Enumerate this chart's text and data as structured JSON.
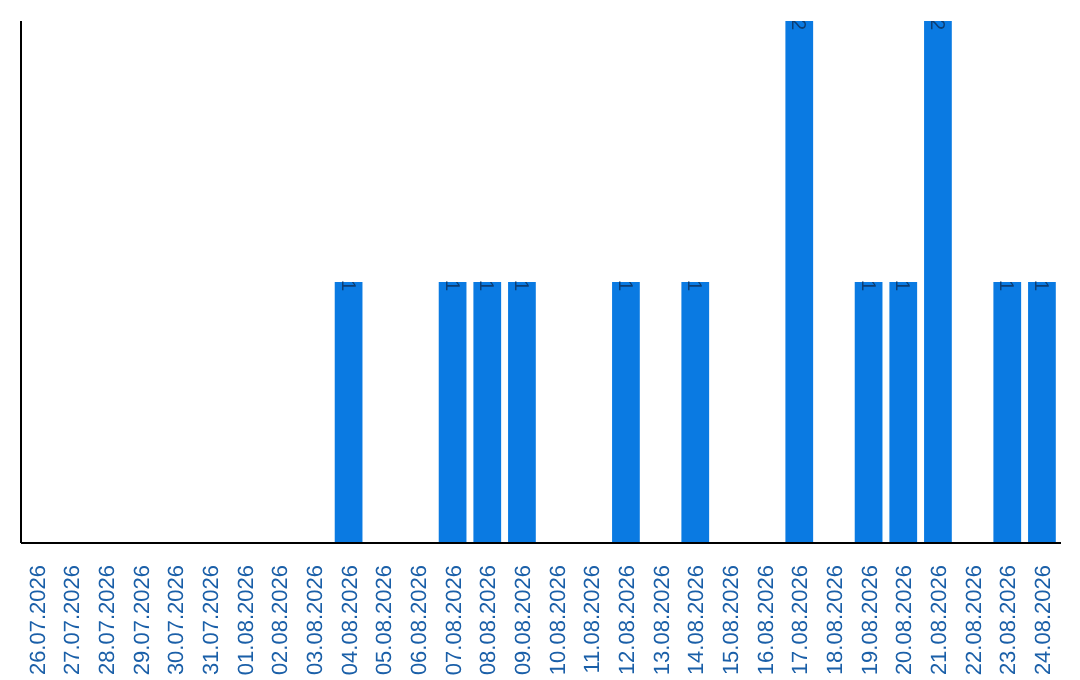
{
  "chart_data": {
    "type": "bar",
    "categories": [
      "26.07.2026",
      "27.07.2026",
      "28.07.2026",
      "29.07.2026",
      "30.07.2026",
      "31.07.2026",
      "01.08.2026",
      "02.08.2026",
      "03.08.2026",
      "04.08.2026",
      "05.08.2026",
      "06.08.2026",
      "07.08.2026",
      "08.08.2026",
      "09.08.2026",
      "10.08.2026",
      "11.08.2026",
      "12.08.2026",
      "13.08.2026",
      "14.08.2026",
      "15.08.2026",
      "16.08.2026",
      "17.08.2026",
      "18.08.2026",
      "19.08.2026",
      "20.08.2026",
      "21.08.2026",
      "22.08.2026",
      "23.08.2026",
      "24.08.2026"
    ],
    "values": [
      0,
      0,
      0,
      0,
      0,
      0,
      0,
      0,
      0,
      1,
      0,
      0,
      1,
      1,
      1,
      0,
      0,
      1,
      0,
      1,
      0,
      0,
      2,
      0,
      1,
      1,
      2,
      0,
      1,
      1
    ],
    "value_labels": [
      null,
      null,
      null,
      null,
      null,
      null,
      null,
      null,
      null,
      "1",
      null,
      null,
      "1",
      "1",
      "1",
      null,
      null,
      "1",
      null,
      "1",
      null,
      null,
      "2",
      null,
      "1",
      "1",
      "2",
      null,
      "1",
      "1"
    ],
    "color": "#0a7ae2",
    "ylim": [
      0,
      2
    ],
    "tick_labels": "x",
    "grid": false
  }
}
